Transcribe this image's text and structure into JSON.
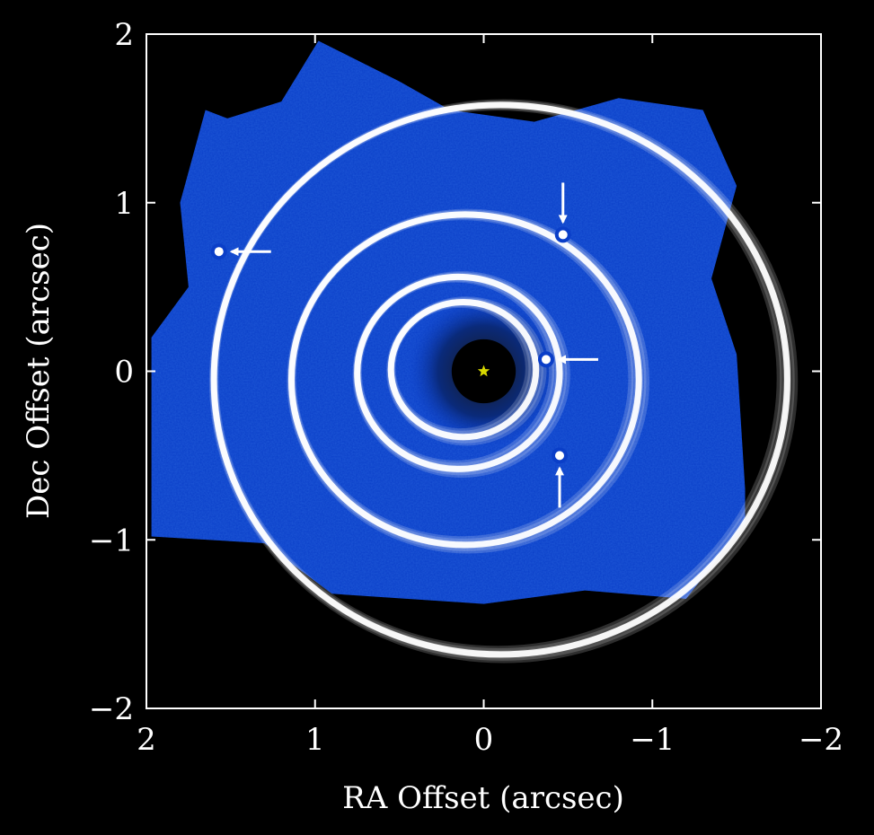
{
  "chart_data": {
    "type": "scatter",
    "title": "",
    "xlabel": "RA Offset (arcsec)",
    "ylabel": "Dec Offset (arcsec)",
    "xlim": [
      2,
      -2
    ],
    "ylim": [
      -2,
      2
    ],
    "x_direction": "reversed",
    "xticks": [
      2,
      1,
      0,
      -1,
      -2
    ],
    "yticks": [
      -2,
      -1,
      0,
      1,
      2
    ],
    "xtick_labels": [
      "2",
      "1",
      "0",
      "−1",
      "−2"
    ],
    "ytick_labels": [
      "−2",
      "−1",
      "0",
      "1",
      "2"
    ],
    "grid": false,
    "background": "detector image (blue) with occulted central star",
    "star": {
      "x": 0,
      "y": 0,
      "marker": "star",
      "color": "#d8d800"
    },
    "planets": [
      {
        "x": 1.57,
        "y": 0.71,
        "arrow_from": "left"
      },
      {
        "x": -0.47,
        "y": 0.81,
        "arrow_from": "top"
      },
      {
        "x": -0.37,
        "y": 0.07,
        "arrow_from": "left"
      },
      {
        "x": -0.45,
        "y": -0.5,
        "arrow_from": "bottom"
      }
    ],
    "orbits": [
      {
        "center": [
          -0.1,
          -0.05
        ],
        "rx": 1.7,
        "ry": 1.63,
        "tilt_deg": 0
      },
      {
        "center": [
          0.11,
          -0.05
        ],
        "rx": 1.03,
        "ry": 0.98,
        "tilt_deg": 0
      },
      {
        "center": [
          0.15,
          -0.01
        ],
        "rx": 0.6,
        "ry": 0.57,
        "tilt_deg": 0
      },
      {
        "center": [
          0.12,
          0.01
        ],
        "rx": 0.43,
        "ry": 0.4,
        "tilt_deg": 0
      }
    ],
    "colors": {
      "image": "#0a3ec8",
      "orbit": "#ffffff",
      "planet": "#ffffff",
      "axes": "#ffffff",
      "background": "#000000"
    }
  }
}
